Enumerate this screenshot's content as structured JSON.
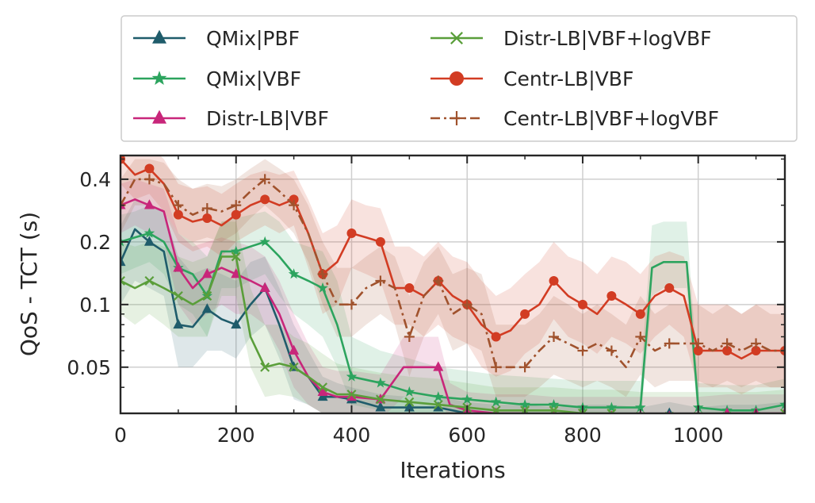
{
  "chart_data": {
    "type": "line",
    "xlabel": "Iterations",
    "ylabel": "QoS - TCT (s)",
    "xlim": [
      0,
      1150
    ],
    "ylim": [
      0.03,
      0.52
    ],
    "y_scale": "log",
    "grid": true,
    "legend_placement": "top (above plot), 2 columns",
    "x_ticks": [
      {
        "value": 0,
        "label": "0"
      },
      {
        "value": 200,
        "label": "200"
      },
      {
        "value": 400,
        "label": "400"
      },
      {
        "value": 600,
        "label": "600"
      },
      {
        "value": 800,
        "label": "800"
      },
      {
        "value": 1000,
        "label": "1000"
      }
    ],
    "y_ticks": [
      {
        "value": 0.05,
        "label": "0.05"
      },
      {
        "value": 0.1,
        "label": "0.1"
      },
      {
        "value": 0.2,
        "label": "0.2"
      },
      {
        "value": 0.4,
        "label": "0.4"
      }
    ],
    "series": [
      {
        "name": "QMix|PBF",
        "color": "#1f5c6b",
        "marker": "triangle",
        "dash": "solid",
        "x": [
          0,
          25,
          50,
          75,
          100,
          125,
          150,
          175,
          200,
          225,
          250,
          275,
          300,
          325,
          350,
          375,
          400,
          450,
          500,
          550,
          600,
          650,
          700,
          750,
          800,
          850,
          900,
          950,
          1000,
          1050,
          1100,
          1150
        ],
        "y": [
          0.16,
          0.23,
          0.2,
          0.18,
          0.08,
          0.078,
          0.095,
          0.085,
          0.08,
          0.1,
          0.12,
          0.08,
          0.05,
          0.045,
          0.036,
          0.036,
          0.035,
          0.032,
          0.032,
          0.032,
          0.03,
          0.029,
          0.029,
          0.028,
          0.029,
          0.029,
          0.028,
          0.03,
          0.028,
          0.029,
          0.029,
          0.03
        ],
        "band_lo": [
          0.1,
          0.13,
          0.12,
          0.11,
          0.05,
          0.05,
          0.06,
          0.06,
          0.055,
          0.07,
          0.08,
          0.055,
          0.035,
          0.033,
          0.03,
          0.03,
          0.029,
          0.028,
          0.028,
          0.028,
          0.027,
          0.026,
          0.026,
          0.026,
          0.026,
          0.026,
          0.026,
          0.027,
          0.026,
          0.026,
          0.026,
          0.027
        ],
        "band_hi": [
          0.24,
          0.32,
          0.3,
          0.28,
          0.17,
          0.14,
          0.15,
          0.14,
          0.13,
          0.16,
          0.17,
          0.12,
          0.08,
          0.06,
          0.045,
          0.042,
          0.04,
          0.037,
          0.036,
          0.036,
          0.034,
          0.033,
          0.033,
          0.032,
          0.033,
          0.033,
          0.032,
          0.034,
          0.032,
          0.033,
          0.033,
          0.034
        ]
      },
      {
        "name": "QMix|VBF",
        "color": "#2ca45e",
        "marker": "star",
        "dash": "solid",
        "x": [
          0,
          25,
          50,
          75,
          100,
          125,
          150,
          175,
          200,
          225,
          250,
          275,
          300,
          325,
          350,
          375,
          400,
          450,
          500,
          550,
          600,
          650,
          700,
          750,
          800,
          850,
          900,
          920,
          940,
          960,
          980,
          1000,
          1050,
          1100,
          1150
        ],
        "y": [
          0.2,
          0.21,
          0.22,
          0.2,
          0.15,
          0.14,
          0.11,
          0.18,
          0.18,
          0.19,
          0.2,
          0.17,
          0.14,
          0.13,
          0.12,
          0.08,
          0.045,
          0.042,
          0.038,
          0.036,
          0.035,
          0.034,
          0.033,
          0.033,
          0.032,
          0.032,
          0.032,
          0.15,
          0.16,
          0.16,
          0.16,
          0.032,
          0.031,
          0.031,
          0.033
        ],
        "band_lo": [
          0.14,
          0.15,
          0.16,
          0.14,
          0.1,
          0.09,
          0.07,
          0.12,
          0.12,
          0.13,
          0.14,
          0.11,
          0.09,
          0.08,
          0.07,
          0.05,
          0.033,
          0.031,
          0.029,
          0.028,
          0.028,
          0.027,
          0.027,
          0.027,
          0.026,
          0.026,
          0.026,
          0.11,
          0.12,
          0.12,
          0.12,
          0.027,
          0.027,
          0.027,
          0.028
        ],
        "band_hi": [
          0.27,
          0.28,
          0.3,
          0.28,
          0.22,
          0.2,
          0.17,
          0.25,
          0.26,
          0.27,
          0.28,
          0.25,
          0.2,
          0.19,
          0.18,
          0.13,
          0.07,
          0.06,
          0.055,
          0.05,
          0.048,
          0.046,
          0.045,
          0.044,
          0.043,
          0.043,
          0.043,
          0.24,
          0.25,
          0.25,
          0.25,
          0.042,
          0.041,
          0.041,
          0.044
        ]
      },
      {
        "name": "Distr-LB|VBF",
        "color": "#c8267a",
        "marker": "triangle",
        "dash": "solid",
        "x": [
          0,
          25,
          50,
          75,
          100,
          125,
          150,
          175,
          200,
          225,
          250,
          275,
          300,
          325,
          350,
          375,
          400,
          450,
          490,
          510,
          530,
          550,
          570,
          600,
          650,
          700,
          750,
          800,
          850,
          900,
          950,
          1000,
          1050,
          1100,
          1150
        ],
        "y": [
          0.3,
          0.32,
          0.3,
          0.28,
          0.15,
          0.12,
          0.14,
          0.15,
          0.14,
          0.13,
          0.12,
          0.09,
          0.06,
          0.045,
          0.038,
          0.036,
          0.036,
          0.035,
          0.05,
          0.05,
          0.05,
          0.05,
          0.033,
          0.031,
          0.03,
          0.03,
          0.029,
          0.029,
          0.029,
          0.029,
          0.029,
          0.029,
          0.03,
          0.03,
          0.03
        ],
        "band_lo": [
          0.22,
          0.24,
          0.22,
          0.2,
          0.1,
          0.08,
          0.09,
          0.1,
          0.09,
          0.09,
          0.08,
          0.06,
          0.04,
          0.033,
          0.03,
          0.029,
          0.029,
          0.028,
          0.036,
          0.036,
          0.036,
          0.036,
          0.028,
          0.027,
          0.026,
          0.026,
          0.026,
          0.026,
          0.026,
          0.026,
          0.026,
          0.026,
          0.026,
          0.026,
          0.026
        ],
        "band_hi": [
          0.38,
          0.4,
          0.38,
          0.36,
          0.22,
          0.19,
          0.2,
          0.21,
          0.2,
          0.19,
          0.17,
          0.13,
          0.09,
          0.065,
          0.05,
          0.048,
          0.048,
          0.046,
          0.07,
          0.07,
          0.07,
          0.07,
          0.042,
          0.038,
          0.037,
          0.037,
          0.036,
          0.036,
          0.036,
          0.036,
          0.036,
          0.036,
          0.037,
          0.037,
          0.037
        ]
      },
      {
        "name": "Distr-LB|VBF+logVBF",
        "color": "#5a9e3a",
        "marker": "x",
        "dash": "solid",
        "x": [
          0,
          25,
          50,
          75,
          100,
          125,
          150,
          175,
          200,
          225,
          250,
          275,
          300,
          325,
          350,
          375,
          400,
          450,
          500,
          550,
          600,
          650,
          700,
          750,
          800,
          850,
          900,
          950,
          1000,
          1050,
          1100,
          1150
        ],
        "y": [
          0.13,
          0.12,
          0.13,
          0.12,
          0.11,
          0.1,
          0.11,
          0.17,
          0.17,
          0.07,
          0.05,
          0.052,
          0.05,
          0.045,
          0.04,
          0.037,
          0.037,
          0.035,
          0.034,
          0.033,
          0.032,
          0.031,
          0.031,
          0.031,
          0.03,
          0.03,
          0.029,
          0.029,
          0.029,
          0.029,
          0.029,
          0.03
        ],
        "band_lo": [
          0.09,
          0.08,
          0.09,
          0.08,
          0.07,
          0.07,
          0.07,
          0.11,
          0.11,
          0.05,
          0.036,
          0.037,
          0.036,
          0.033,
          0.03,
          0.029,
          0.029,
          0.028,
          0.028,
          0.027,
          0.027,
          0.026,
          0.026,
          0.026,
          0.026,
          0.026,
          0.025,
          0.025,
          0.025,
          0.025,
          0.025,
          0.026
        ],
        "band_hi": [
          0.2,
          0.19,
          0.2,
          0.19,
          0.17,
          0.16,
          0.17,
          0.25,
          0.25,
          0.12,
          0.08,
          0.08,
          0.07,
          0.065,
          0.058,
          0.052,
          0.05,
          0.047,
          0.045,
          0.044,
          0.042,
          0.04,
          0.04,
          0.04,
          0.039,
          0.039,
          0.038,
          0.038,
          0.038,
          0.038,
          0.038,
          0.039
        ]
      },
      {
        "name": "Centr-LB|VBF",
        "color": "#d23c23",
        "marker": "circle",
        "dash": "solid",
        "x": [
          0,
          25,
          50,
          75,
          100,
          125,
          150,
          175,
          200,
          225,
          250,
          275,
          300,
          325,
          350,
          375,
          400,
          425,
          450,
          475,
          500,
          525,
          550,
          575,
          600,
          625,
          650,
          675,
          700,
          725,
          750,
          775,
          800,
          825,
          850,
          875,
          900,
          925,
          950,
          975,
          1000,
          1025,
          1050,
          1075,
          1100,
          1125,
          1150
        ],
        "y": [
          0.5,
          0.42,
          0.45,
          0.38,
          0.27,
          0.25,
          0.26,
          0.24,
          0.27,
          0.3,
          0.32,
          0.3,
          0.32,
          0.22,
          0.14,
          0.16,
          0.22,
          0.21,
          0.2,
          0.12,
          0.12,
          0.11,
          0.13,
          0.11,
          0.1,
          0.08,
          0.07,
          0.075,
          0.09,
          0.1,
          0.13,
          0.11,
          0.1,
          0.09,
          0.11,
          0.1,
          0.09,
          0.11,
          0.12,
          0.11,
          0.06,
          0.06,
          0.06,
          0.055,
          0.06,
          0.06,
          0.06
        ],
        "band_lo": [
          0.38,
          0.32,
          0.34,
          0.28,
          0.2,
          0.18,
          0.19,
          0.17,
          0.2,
          0.22,
          0.24,
          0.22,
          0.24,
          0.15,
          0.09,
          0.1,
          0.15,
          0.14,
          0.13,
          0.08,
          0.08,
          0.07,
          0.08,
          0.07,
          0.065,
          0.05,
          0.045,
          0.048,
          0.058,
          0.065,
          0.085,
          0.07,
          0.065,
          0.058,
          0.07,
          0.065,
          0.058,
          0.07,
          0.08,
          0.07,
          0.04,
          0.04,
          0.04,
          0.037,
          0.04,
          0.04,
          0.04
        ],
        "band_hi": [
          0.6,
          0.55,
          0.58,
          0.5,
          0.38,
          0.36,
          0.37,
          0.34,
          0.38,
          0.42,
          0.44,
          0.42,
          0.44,
          0.32,
          0.22,
          0.24,
          0.32,
          0.3,
          0.29,
          0.19,
          0.19,
          0.17,
          0.2,
          0.17,
          0.16,
          0.13,
          0.11,
          0.12,
          0.14,
          0.16,
          0.2,
          0.17,
          0.16,
          0.14,
          0.17,
          0.16,
          0.14,
          0.17,
          0.18,
          0.17,
          0.1,
          0.1,
          0.1,
          0.09,
          0.1,
          0.1,
          0.1
        ]
      },
      {
        "name": "Centr-LB|VBF+logVBF",
        "color": "#a0522d",
        "marker": "plus",
        "dash": "dashdot",
        "x": [
          0,
          25,
          50,
          75,
          100,
          125,
          150,
          175,
          200,
          225,
          250,
          275,
          300,
          325,
          350,
          375,
          400,
          425,
          450,
          475,
          500,
          525,
          550,
          575,
          600,
          625,
          650,
          675,
          700,
          725,
          750,
          775,
          800,
          825,
          850,
          875,
          900,
          925,
          950,
          975,
          1000,
          1025,
          1050,
          1075,
          1100,
          1125,
          1150
        ],
        "y": [
          0.3,
          0.4,
          0.4,
          0.38,
          0.3,
          0.27,
          0.29,
          0.28,
          0.3,
          0.35,
          0.4,
          0.35,
          0.3,
          0.22,
          0.14,
          0.1,
          0.1,
          0.12,
          0.13,
          0.12,
          0.07,
          0.11,
          0.13,
          0.09,
          0.1,
          0.09,
          0.05,
          0.05,
          0.05,
          0.06,
          0.07,
          0.065,
          0.06,
          0.065,
          0.06,
          0.05,
          0.07,
          0.06,
          0.065,
          0.065,
          0.065,
          0.06,
          0.065,
          0.06,
          0.065,
          0.06,
          0.06
        ],
        "band_lo": [
          0.22,
          0.3,
          0.3,
          0.28,
          0.22,
          0.2,
          0.21,
          0.2,
          0.22,
          0.26,
          0.3,
          0.26,
          0.22,
          0.16,
          0.1,
          0.07,
          0.07,
          0.08,
          0.09,
          0.08,
          0.045,
          0.07,
          0.09,
          0.06,
          0.065,
          0.06,
          0.036,
          0.036,
          0.036,
          0.04,
          0.046,
          0.043,
          0.04,
          0.043,
          0.04,
          0.036,
          0.046,
          0.04,
          0.043,
          0.043,
          0.043,
          0.04,
          0.043,
          0.04,
          0.043,
          0.04,
          0.04
        ],
        "band_hi": [
          0.4,
          0.5,
          0.5,
          0.48,
          0.4,
          0.36,
          0.38,
          0.37,
          0.4,
          0.45,
          0.5,
          0.45,
          0.4,
          0.3,
          0.2,
          0.15,
          0.15,
          0.17,
          0.19,
          0.17,
          0.11,
          0.16,
          0.19,
          0.14,
          0.15,
          0.14,
          0.08,
          0.08,
          0.08,
          0.09,
          0.11,
          0.1,
          0.09,
          0.1,
          0.09,
          0.08,
          0.11,
          0.09,
          0.1,
          0.1,
          0.1,
          0.09,
          0.1,
          0.09,
          0.1,
          0.09,
          0.09
        ]
      }
    ]
  }
}
